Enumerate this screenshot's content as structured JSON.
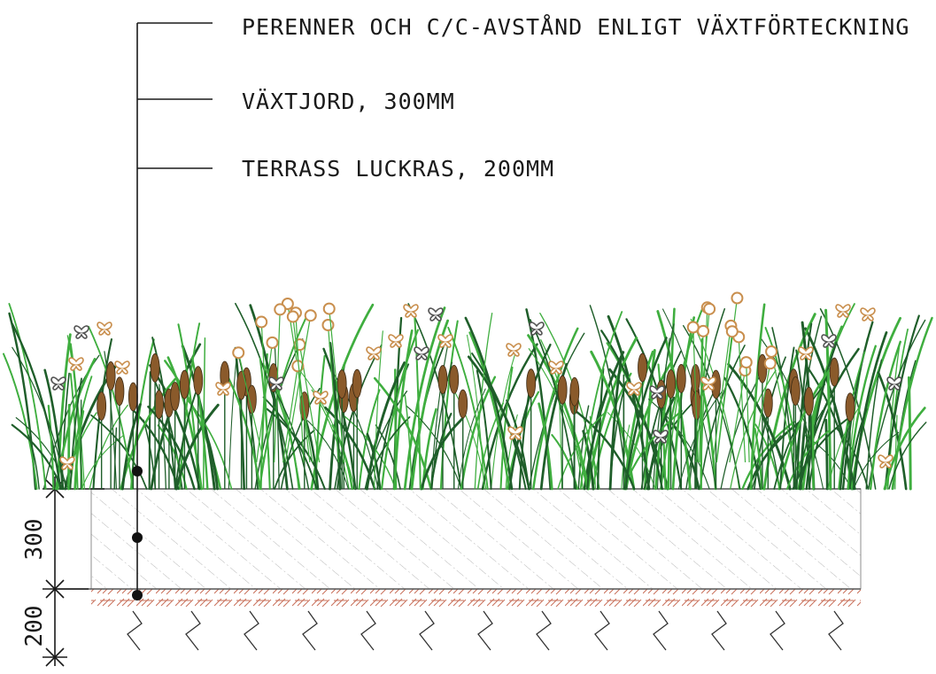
{
  "labels": {
    "plants": "PERENNER OCH C/C-AVSTÅND ENLIGT VÄXTFÖRTECKNING",
    "soil": "VÄXTJORD, 300MM",
    "terrace": "TERRASS LUCKRAS, 200MM"
  },
  "dimensions": {
    "soil_depth": "300",
    "terrace_depth": "200"
  },
  "colors": {
    "line": "#1a1a1a",
    "grass_dark": "#1f5e2a",
    "grass_light": "#3fae3f",
    "seedhead": "#8a5a2b",
    "flower_ring": "#c98f4e",
    "soil_hatch": "#b7b7b7",
    "terrace_hatch": "#c8705a"
  }
}
